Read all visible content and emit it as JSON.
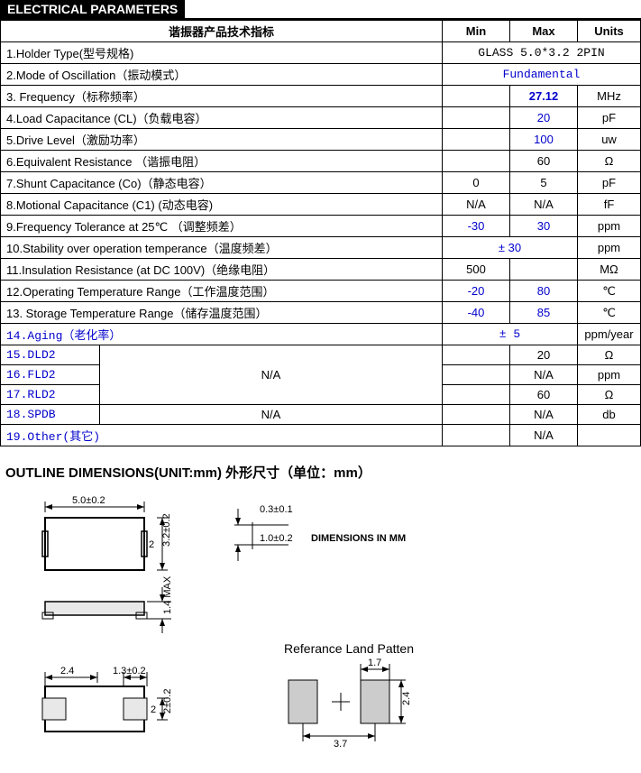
{
  "sectionTitle": "ELECTRICAL PARAMETERS",
  "header": {
    "param": "谐振器产品技术指标",
    "min": "Min",
    "max": "Max",
    "units": "Units"
  },
  "rows": [
    {
      "label": "1.Holder Type(型号规格)",
      "minmax": "GLASS 5.0*3.2 2PIN",
      "units": "",
      "span": "all",
      "cls": "mono"
    },
    {
      "label": "2.Mode of Oscillation（振动模式）",
      "minmax": "Fundamental",
      "units": "",
      "span": "all",
      "cls": "mono blue"
    },
    {
      "label": "3. Frequency（标称频率）",
      "min": "",
      "max": "27.12",
      "units": "MHz",
      "maxCls": "blue",
      "maxBold": true
    },
    {
      "label": "4.Load Capacitance (CL)（负载电容）",
      "min": "",
      "max": "20",
      "units": "pF",
      "maxCls": "blue"
    },
    {
      "label": "5.Drive Level（激励功率）",
      "min": "",
      "max": "100",
      "units": "uw",
      "maxCls": "blue"
    },
    {
      "label": "6.Equivalent Resistance （谐振电阻）",
      "min": "",
      "max": "60",
      "units": "Ω"
    },
    {
      "label": "7.Shunt Capacitance (Co)（静态电容）",
      "min": "0",
      "max": "5",
      "units": "pF"
    },
    {
      "label": "8.Motional Capacitance (C1) (动态电容)",
      "min": "N/A",
      "max": "N/A",
      "units": "fF"
    },
    {
      "label": "9.Frequency Tolerance at 25℃ （调整频差）",
      "min": "-30",
      "max": "30",
      "units": "ppm",
      "minCls": "blue",
      "maxCls": "blue"
    },
    {
      "label": "10.Stability over operation temperance（温度频差）",
      "minmax": "± 30",
      "units": "ppm",
      "span": "minmax",
      "cls": "blue"
    },
    {
      "label": "11.Insulation Resistance (at DC 100V)（绝缘电阻）",
      "min": "500",
      "max": "",
      "units": "MΩ"
    },
    {
      "label": "12.Operating Temperature Range（工作温度范围）",
      "min": "-20",
      "max": "80",
      "units": "℃",
      "minCls": "blue",
      "maxCls": "blue"
    },
    {
      "label": "13. Storage Temperature Range（储存温度范围）",
      "min": "-40",
      "max": "85",
      "units": "℃",
      "minCls": "blue",
      "maxCls": "blue"
    },
    {
      "label": "14.Aging（老化率）",
      "minmax": "± 5",
      "units": "ppm/year",
      "span": "minmax",
      "cls": "mono blue",
      "labelCls": "mono blue"
    },
    {
      "label": "15.DLD2",
      "subfirst": true,
      "min": "",
      "max": "20",
      "units": "Ω",
      "labelCls": "mono blue"
    },
    {
      "label": "16.FLD2",
      "sub": true,
      "min": "",
      "max": "N/A",
      "units": "ppm",
      "labelCls": "mono blue"
    },
    {
      "label": "17.RLD2",
      "sub": true,
      "min": "",
      "max": "60",
      "units": "Ω",
      "labelCls": "mono blue"
    },
    {
      "label": "18.SPDB",
      "sublabel": "N/A",
      "min": "",
      "max": "N/A",
      "units": "db",
      "labelCls": "mono blue"
    },
    {
      "label": "19.Other(其它)",
      "min": "",
      "max": "N/A",
      "units": "",
      "labelCls": "mono blue"
    }
  ],
  "groupNA": "N/A",
  "dimensionsTitle": "OUTLINE DIMENSIONS(UNIT:mm)  外形尺寸（单位：mm）",
  "dims": {
    "w": "5.0±0.2",
    "h": "3.2±0.2",
    "t": "0.3±0.1",
    "th": "1.0±0.2",
    "maxh": "1.4 MAX",
    "pad": "2.4",
    "padtol": "1.3±0.2",
    "padh": "2±0.2",
    "landTitle": "Referance Land  Patten",
    "landw": "1.7",
    "landh": "2.4",
    "landpitch": "3.7",
    "dimLabel": "DIMENSIONS IN MM",
    "pin2": "2"
  }
}
